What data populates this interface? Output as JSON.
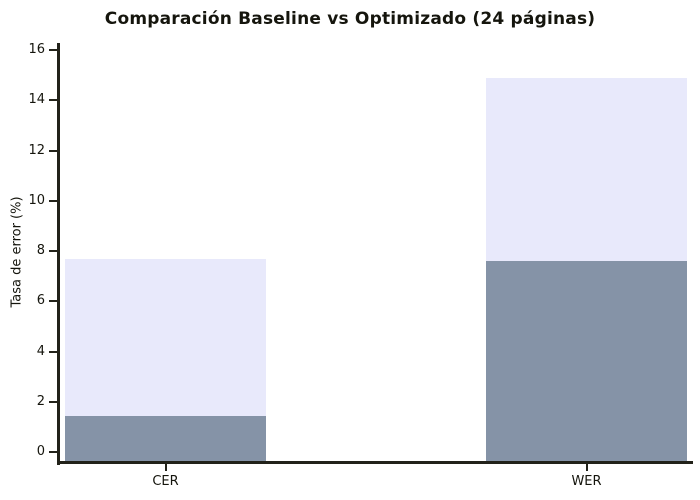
{
  "chart_data": {
    "type": "bar",
    "title": "Comparación Baseline vs Optimizado (24 páginas)",
    "xlabel": "",
    "ylabel": "Tasa de error (%)",
    "categories": [
      "CER",
      "WER"
    ],
    "series": [
      {
        "name": "Baseline",
        "color": "#e8e9fb",
        "values": [
          7.7,
          14.9
        ]
      },
      {
        "name": "Optimizado",
        "color": "#8593a7",
        "values": [
          1.45,
          7.6
        ]
      }
    ],
    "bar_style": "overlapped",
    "ylim": [
      0,
      16
    ],
    "yticks": [
      0,
      2,
      4,
      6,
      8,
      10,
      12,
      14,
      16
    ],
    "grid": false,
    "legend_position": "none"
  },
  "colors": {
    "background": "#ffffff",
    "axis": "#22221a",
    "text": "#15150d"
  }
}
